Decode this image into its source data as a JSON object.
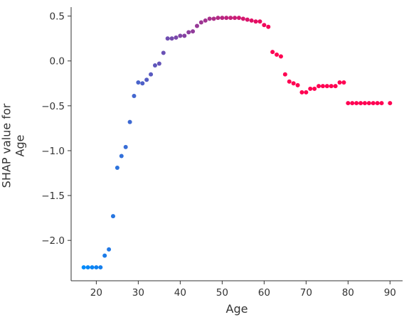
{
  "chart_data": {
    "type": "scatter",
    "xlabel": "Age",
    "ylabel": "SHAP value for\nAge",
    "xlim": [
      14,
      93
    ],
    "ylim": [
      -2.45,
      0.6
    ],
    "xticks": [
      20,
      30,
      40,
      50,
      60,
      70,
      80,
      90
    ],
    "yticks": [
      0.5,
      0.0,
      -0.5,
      -1.0,
      -1.5,
      -2.0
    ],
    "ytick_labels": [
      "0.5",
      "0.0",
      "−0.5",
      "−1.0",
      "−1.5",
      "−2.0"
    ],
    "grid": false,
    "color_scale": [
      "#008bfb",
      "#ff0052"
    ],
    "series": [
      {
        "x": [
          17,
          18,
          19,
          20,
          21,
          22,
          23,
          24,
          25,
          26,
          27,
          28,
          29,
          30,
          31,
          32,
          33,
          34,
          35,
          36,
          37,
          38,
          39,
          40,
          41,
          42,
          43,
          44,
          45,
          46,
          47,
          48,
          49,
          50,
          51,
          52,
          53,
          54,
          55,
          56,
          57,
          58,
          59,
          60,
          61,
          62,
          63,
          64,
          65,
          66,
          67,
          68,
          69,
          70,
          71,
          72,
          73,
          74,
          75,
          76,
          77,
          78,
          79,
          80,
          81,
          82,
          83,
          84,
          85,
          86,
          87,
          88,
          90
        ],
        "y": [
          -2.3,
          -2.3,
          -2.3,
          -2.3,
          -2.3,
          -2.17,
          -2.1,
          -1.73,
          -1.19,
          -1.06,
          -0.96,
          -0.68,
          -0.39,
          -0.24,
          -0.25,
          -0.21,
          -0.15,
          -0.05,
          -0.03,
          0.09,
          0.25,
          0.25,
          0.26,
          0.28,
          0.28,
          0.32,
          0.33,
          0.39,
          0.43,
          0.45,
          0.47,
          0.47,
          0.48,
          0.48,
          0.48,
          0.48,
          0.48,
          0.48,
          0.47,
          0.46,
          0.45,
          0.44,
          0.44,
          0.4,
          0.38,
          0.1,
          0.07,
          0.05,
          -0.15,
          -0.23,
          -0.25,
          -0.27,
          -0.35,
          -0.35,
          -0.31,
          -0.31,
          -0.28,
          -0.28,
          -0.28,
          -0.28,
          -0.28,
          -0.24,
          -0.24,
          -0.47,
          -0.47,
          -0.47,
          -0.47,
          -0.47,
          -0.47,
          -0.47,
          -0.47,
          -0.47,
          -0.47
        ]
      }
    ]
  }
}
